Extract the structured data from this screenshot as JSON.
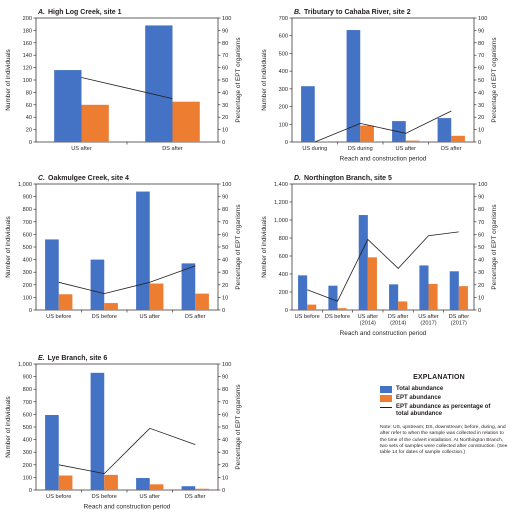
{
  "charts": [
    {
      "id": "A",
      "letter": "A.",
      "title": "High Log Creek, site 1",
      "ylabel_left": "Number of individuals",
      "ylabel_right": "Percentage of EPT organisms",
      "xlabel": "Reach and construction period",
      "left_ticks": [
        "0",
        "20",
        "40",
        "60",
        "80",
        "100",
        "120",
        "140",
        "160",
        "180",
        "200"
      ],
      "right_ticks": [
        "0",
        "10",
        "20",
        "30",
        "40",
        "50",
        "60",
        "70",
        "80",
        "90",
        "100"
      ],
      "categories": [
        [
          "US after"
        ],
        [
          "DS after"
        ]
      ],
      "show_xlabel": false
    },
    {
      "id": "B",
      "letter": "B.",
      "title": "Tributary to Cahaba River, site 2",
      "ylabel_left": "Number of individuals",
      "ylabel_right": "Percentage of EPT organisms",
      "xlabel": "Reach and construction period",
      "left_ticks": [
        "0",
        "100",
        "200",
        "300",
        "400",
        "500",
        "600",
        "700"
      ],
      "right_ticks": [
        "0",
        "10",
        "20",
        "30",
        "40",
        "50",
        "60",
        "70",
        "80",
        "90",
        "100"
      ],
      "categories": [
        [
          "US during"
        ],
        [
          "DS during"
        ],
        [
          "US after"
        ],
        [
          "DS after"
        ]
      ],
      "show_xlabel": true
    },
    {
      "id": "C",
      "letter": "C.",
      "title": "Oakmulgee Creek, site 4",
      "ylabel_left": "Number of individuals",
      "ylabel_right": "Percentage of EPT organisms",
      "xlabel": "Reach and construction period",
      "left_ticks": [
        "0",
        "100",
        "200",
        "300",
        "400",
        "500",
        "600",
        "700",
        "800",
        "900",
        "1,000"
      ],
      "right_ticks": [
        "0",
        "10",
        "20",
        "30",
        "40",
        "50",
        "60",
        "70",
        "80",
        "90",
        "100"
      ],
      "categories": [
        [
          "US before"
        ],
        [
          "DS before"
        ],
        [
          "US after"
        ],
        [
          "DS after"
        ]
      ],
      "show_xlabel": false
    },
    {
      "id": "D",
      "letter": "D.",
      "title": "Northington Branch, site 5",
      "ylabel_left": "Number of individuals",
      "ylabel_right": "Percentage of EPT organisms",
      "xlabel": "Reach and construction period",
      "left_ticks": [
        "0",
        "200",
        "400",
        "600",
        "800",
        "1,000",
        "1,200",
        "1,400"
      ],
      "right_ticks": [
        "0",
        "10",
        "20",
        "30",
        "40",
        "50",
        "60",
        "70",
        "80",
        "90",
        "100"
      ],
      "categories": [
        [
          "US before"
        ],
        [
          "DS before"
        ],
        [
          "US after",
          "(2014)"
        ],
        [
          "DS after",
          "(2014)"
        ],
        [
          "US after",
          "(2017)"
        ],
        [
          "DS after",
          "(2017)"
        ]
      ],
      "show_xlabel": true
    },
    {
      "id": "E",
      "letter": "E.",
      "title": "Lye Branch, site 6",
      "ylabel_left": "Number of individuals",
      "ylabel_right": "Percentage of EPT organisms",
      "xlabel": "Reach and construction period",
      "left_ticks": [
        "0",
        "100",
        "200",
        "300",
        "400",
        "500",
        "600",
        "700",
        "800",
        "900",
        "1,000"
      ],
      "right_ticks": [
        "0",
        "10",
        "20",
        "30",
        "40",
        "50",
        "60",
        "70",
        "80",
        "90",
        "100"
      ],
      "categories": [
        [
          "US before"
        ],
        [
          "DS before"
        ],
        [
          "US after"
        ],
        [
          "DS after"
        ]
      ],
      "show_xlabel": true
    }
  ],
  "chart_data": [
    {
      "type": "bar",
      "panel": "A",
      "categories": [
        "US after",
        "DS after"
      ],
      "ylim": [
        0,
        200
      ],
      "y2lim": [
        0,
        100
      ],
      "series": [
        {
          "name": "Total abundance",
          "values": [
            116,
            188
          ]
        },
        {
          "name": "EPT abundance",
          "values": [
            60,
            65
          ]
        },
        {
          "name": "EPT abundance as percentage of total abundance",
          "axis": "right",
          "line": true,
          "values": [
            52,
            35
          ]
        }
      ]
    },
    {
      "type": "bar",
      "panel": "B",
      "categories": [
        "US during",
        "DS during",
        "US after",
        "DS after"
      ],
      "ylim": [
        0,
        700
      ],
      "y2lim": [
        0,
        100
      ],
      "series": [
        {
          "name": "Total abundance",
          "values": [
            315,
            632,
            118,
            135
          ]
        },
        {
          "name": "EPT abundance",
          "values": [
            1,
            93,
            8,
            35
          ]
        },
        {
          "name": "EPT abundance as percentage of total abundance",
          "axis": "right",
          "line": true,
          "values": [
            0,
            15,
            7,
            25
          ]
        }
      ]
    },
    {
      "type": "bar",
      "panel": "C",
      "categories": [
        "US before",
        "DS before",
        "US after",
        "DS after"
      ],
      "ylim": [
        0,
        1000
      ],
      "y2lim": [
        0,
        100
      ],
      "series": [
        {
          "name": "Total abundance",
          "values": [
            560,
            400,
            940,
            370
          ]
        },
        {
          "name": "EPT abundance",
          "values": [
            125,
            55,
            210,
            130
          ]
        },
        {
          "name": "EPT abundance as percentage of total abundance",
          "axis": "right",
          "line": true,
          "values": [
            22,
            13,
            22,
            35
          ]
        }
      ]
    },
    {
      "type": "bar",
      "panel": "D",
      "categories": [
        "US before",
        "DS before",
        "US after (2014)",
        "DS after (2014)",
        "US after (2017)",
        "DS after (2017)"
      ],
      "ylim": [
        0,
        1400
      ],
      "y2lim": [
        0,
        100
      ],
      "series": [
        {
          "name": "Total abundance",
          "values": [
            385,
            270,
            1055,
            285,
            495,
            430
          ]
        },
        {
          "name": "EPT abundance",
          "values": [
            60,
            20,
            585,
            95,
            290,
            265
          ]
        },
        {
          "name": "EPT abundance as percentage of total abundance",
          "axis": "right",
          "line": true,
          "values": [
            16,
            7,
            56,
            33,
            59,
            62
          ]
        }
      ]
    },
    {
      "type": "bar",
      "panel": "E",
      "categories": [
        "US before",
        "DS before",
        "US after",
        "DS after"
      ],
      "ylim": [
        0,
        1000
      ],
      "y2lim": [
        0,
        100
      ],
      "series": [
        {
          "name": "Total abundance",
          "values": [
            595,
            930,
            95,
            30
          ]
        },
        {
          "name": "EPT abundance",
          "values": [
            115,
            120,
            45,
            10
          ]
        },
        {
          "name": "EPT abundance as percentage of total abundance",
          "axis": "right",
          "line": true,
          "values": [
            20,
            13,
            49,
            36
          ]
        }
      ]
    }
  ],
  "colors": {
    "total": "#4472c4",
    "ept": "#ed7d31",
    "line": "#231f20",
    "axis": "#231f20"
  },
  "legend": {
    "title": "EXPLANATION",
    "total_label": "Total abundance",
    "ept_label": "EPT abundance",
    "line_label": "EPT abundance as percentage of total abundance",
    "note": "Note: US, upstream; DS, downstream; before, during, and after refer to when the sample was collected in relation to the time of the culvert installation. At Northington Branch, two sets of samples were collected after construction. (See table 14 for dates of sample collection.)"
  }
}
